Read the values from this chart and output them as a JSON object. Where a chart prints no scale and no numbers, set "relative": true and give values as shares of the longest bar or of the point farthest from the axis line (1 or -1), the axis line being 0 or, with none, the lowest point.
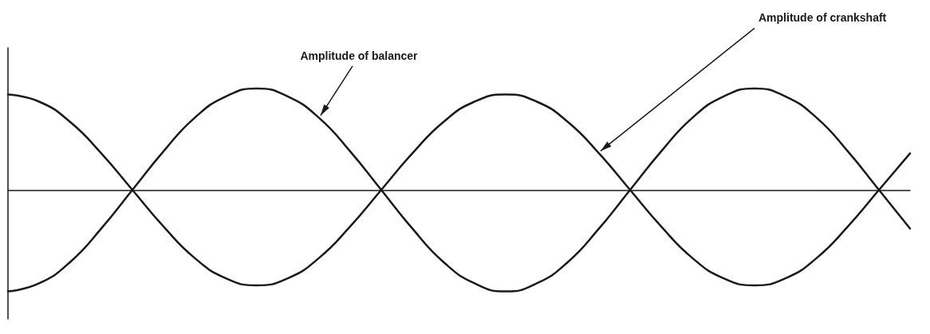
{
  "chart_data": {
    "type": "line",
    "relative": true,
    "marker": "none",
    "grid": false,
    "legend": false,
    "categories": [
      null,
      null,
      null,
      null,
      null,
      null,
      null,
      null,
      null,
      null,
      null,
      null,
      null,
      null,
      null,
      null,
      null,
      null,
      null,
      null,
      null,
      null,
      null,
      null,
      null,
      null,
      null,
      null,
      null,
      null
    ],
    "series": [
      {
        "name": "Amplitude of crankshaft",
        "color": "#1a1a1a",
        "values": [
          0.94,
          0.87,
          0.67,
          0.36,
          0,
          -0.36,
          -0.67,
          -0.87,
          -0.94,
          -0.87,
          -0.67,
          -0.36,
          0,
          0.36,
          0.67,
          0.87,
          0.94,
          0.87,
          0.67,
          0.36,
          0,
          -0.36,
          -0.67,
          -0.87,
          -0.94,
          -0.87,
          -0.67,
          -0.36,
          0,
          0.36
        ]
      },
      {
        "name": "Amplitude of balancer",
        "color": "#1a1a1a",
        "values": [
          -1,
          -0.92,
          -0.71,
          -0.38,
          0,
          0.38,
          0.71,
          0.92,
          1,
          0.92,
          0.71,
          0.38,
          0,
          -0.38,
          -0.71,
          -0.92,
          -1,
          -0.92,
          -0.71,
          -0.38,
          0,
          0.38,
          0.71,
          0.92,
          1,
          0.92,
          0.71,
          0.38,
          0,
          -0.38
        ]
      }
    ]
  }
}
